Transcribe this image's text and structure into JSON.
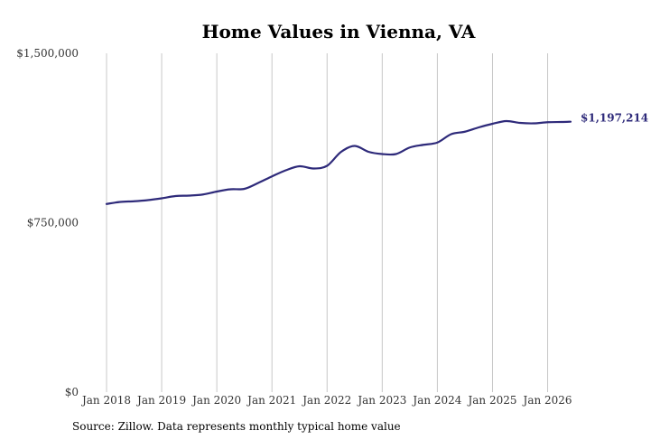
{
  "chart_data": {
    "type": "line",
    "title": "Home Values in Vienna, VA",
    "source": "Source: Zillow. Data represents monthly typical home value",
    "line_color": "#2e2a7a",
    "grid": "vertical",
    "ylim": [
      0,
      1500000
    ],
    "y_ticks": [
      {
        "value": 0,
        "label": "$0"
      },
      {
        "value": 750000,
        "label": "$750,000"
      },
      {
        "value": 1500000,
        "label": "$1,500,000"
      }
    ],
    "xlim": [
      "2018-01",
      "2026-06"
    ],
    "x_ticks": [
      {
        "date": "2018-01",
        "label": "Jan 2018"
      },
      {
        "date": "2019-01",
        "label": "Jan 2019"
      },
      {
        "date": "2020-01",
        "label": "Jan 2020"
      },
      {
        "date": "2021-01",
        "label": "Jan 2021"
      },
      {
        "date": "2022-01",
        "label": "Jan 2022"
      },
      {
        "date": "2023-01",
        "label": "Jan 2023"
      },
      {
        "date": "2024-01",
        "label": "Jan 2024"
      },
      {
        "date": "2025-01",
        "label": "Jan 2025"
      },
      {
        "date": "2026-01",
        "label": "Jan 2026"
      }
    ],
    "end_label": "$1,197,214",
    "series": [
      {
        "x": [
          "2018-01",
          "2018-04",
          "2018-07",
          "2018-10",
          "2019-01",
          "2019-04",
          "2019-07",
          "2019-10",
          "2020-01",
          "2020-04",
          "2020-07",
          "2020-10",
          "2021-01",
          "2021-04",
          "2021-07",
          "2021-10",
          "2022-01",
          "2022-04",
          "2022-07",
          "2022-10",
          "2023-01",
          "2023-04",
          "2023-07",
          "2023-10",
          "2024-01",
          "2024-04",
          "2024-07",
          "2024-10",
          "2025-01",
          "2025-04",
          "2025-07",
          "2025-10",
          "2026-01",
          "2026-04",
          "2026-06"
        ],
        "values": [
          833000,
          842000,
          845000,
          850000,
          858000,
          868000,
          870000,
          875000,
          888000,
          898000,
          900000,
          926000,
          955000,
          982000,
          1000000,
          990000,
          1002000,
          1063000,
          1090000,
          1064000,
          1054000,
          1054000,
          1083000,
          1095000,
          1105000,
          1142000,
          1153000,
          1172000,
          1188000,
          1200000,
          1192000,
          1190000,
          1195000,
          1196000,
          1197214
        ]
      }
    ]
  }
}
